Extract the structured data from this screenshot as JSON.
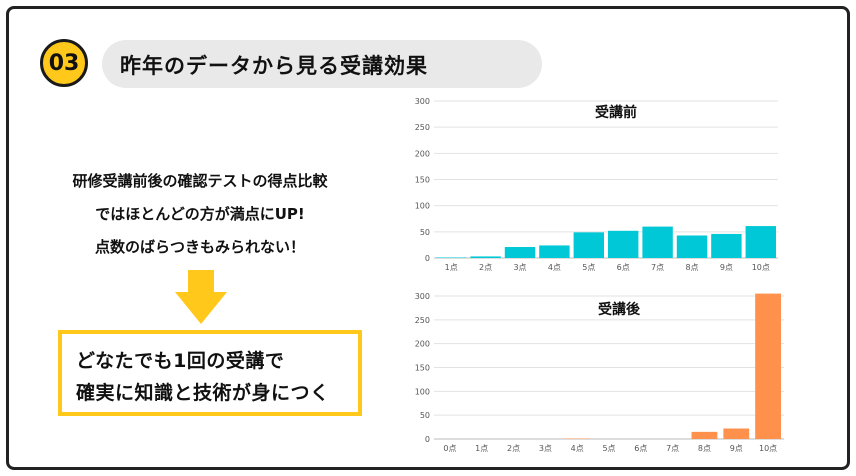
{
  "header": {
    "number": "03",
    "title": "昨年のデータから見る受講効果"
  },
  "description": {
    "lines": [
      "研修受講前後の確認テストの得点比較",
      "ではほとんどの方が満点にUP!",
      "点数のばらつきもみられない！"
    ]
  },
  "callout": {
    "line1": "どなたでも1回の受講で",
    "line2": "確実に知識と技術が身につく"
  },
  "colors": {
    "accent": "#ffc81a",
    "before_bar": "#00c8d6",
    "after_bar": "#ff914d"
  },
  "chart_data": [
    {
      "type": "bar",
      "title": "受講前",
      "categories": [
        "1点",
        "2点",
        "3点",
        "4点",
        "5点",
        "6点",
        "7点",
        "8点",
        "9点",
        "10点"
      ],
      "values": [
        1,
        3,
        21,
        24,
        49,
        52,
        60,
        43,
        46,
        61
      ],
      "ylim": [
        0,
        300
      ],
      "yticks": [
        0,
        50,
        100,
        150,
        200,
        250,
        300
      ],
      "grid": true
    },
    {
      "type": "bar",
      "title": "受講後",
      "categories": [
        "0点",
        "1点",
        "2点",
        "3点",
        "4点",
        "5点",
        "6点",
        "7点",
        "8点",
        "9点",
        "10点"
      ],
      "values": [
        0,
        0,
        0,
        0,
        1,
        0,
        0,
        0,
        15,
        22,
        305
      ],
      "ylim": [
        0,
        300
      ],
      "yticks": [
        0,
        50,
        100,
        150,
        200,
        250,
        300
      ],
      "grid": true
    }
  ]
}
